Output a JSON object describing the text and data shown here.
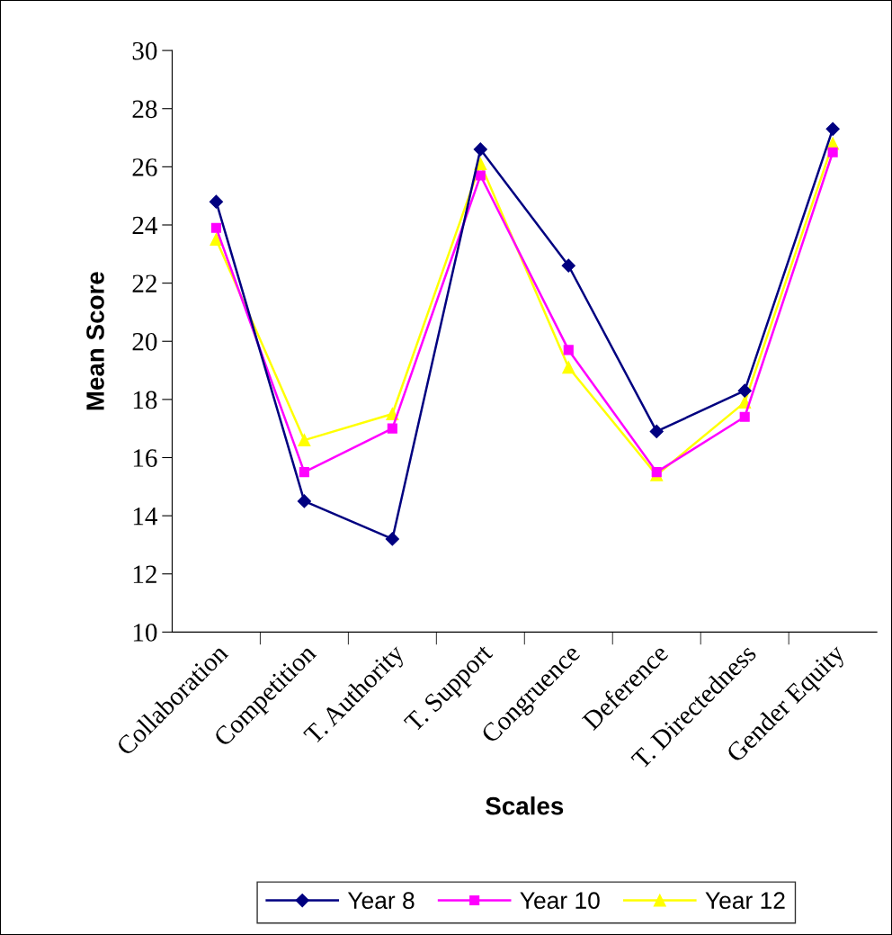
{
  "chart_data": {
    "type": "line",
    "xlabel": "Scales",
    "ylabel": "Mean Score",
    "categories": [
      "Collaboration",
      "Competition",
      "T. Authority",
      "T. Support",
      "Congruence",
      "Deference",
      "T. Directedness",
      "Gender Equity"
    ],
    "series": [
      {
        "name": "Year 8",
        "color": "#000080",
        "marker": "diamond",
        "values": [
          24.8,
          14.5,
          13.2,
          26.6,
          22.6,
          16.9,
          18.3,
          27.3
        ]
      },
      {
        "name": "Year 10",
        "color": "#ff00ff",
        "marker": "square",
        "values": [
          23.9,
          15.5,
          17.0,
          25.7,
          19.7,
          15.5,
          17.4,
          26.5
        ]
      },
      {
        "name": "Year 12",
        "color": "#ffff00",
        "marker": "triangle",
        "values": [
          23.5,
          16.6,
          17.5,
          26.1,
          19.1,
          15.4,
          17.9,
          26.8
        ]
      }
    ],
    "ylim": [
      10,
      30
    ],
    "yticks": [
      10,
      12,
      14,
      16,
      18,
      20,
      22,
      24,
      26,
      28,
      30
    ],
    "grid": false,
    "legend": "bottom",
    "line_style": "solid"
  }
}
